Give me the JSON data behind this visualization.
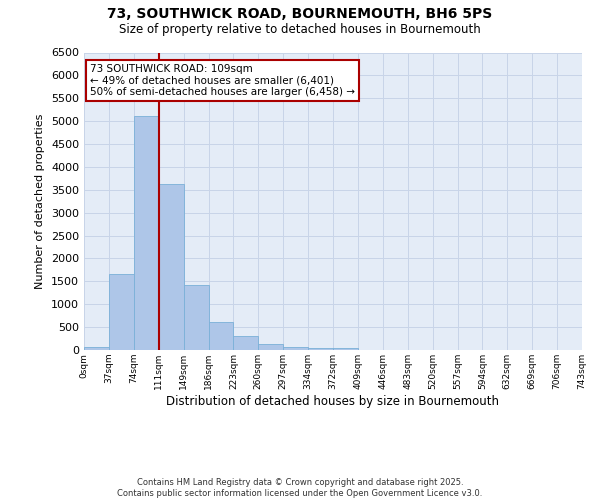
{
  "title_line1": "73, SOUTHWICK ROAD, BOURNEMOUTH, BH6 5PS",
  "title_line2": "Size of property relative to detached houses in Bournemouth",
  "xlabel": "Distribution of detached houses by size in Bournemouth",
  "ylabel": "Number of detached properties",
  "bar_values": [
    75,
    1650,
    5120,
    3620,
    1420,
    620,
    310,
    130,
    70,
    40,
    40,
    0,
    0,
    0,
    0,
    0,
    0,
    0,
    0,
    0
  ],
  "bar_labels": [
    "0sqm",
    "37sqm",
    "74sqm",
    "111sqm",
    "149sqm",
    "186sqm",
    "223sqm",
    "260sqm",
    "297sqm",
    "334sqm",
    "372sqm",
    "409sqm",
    "446sqm",
    "483sqm",
    "520sqm",
    "557sqm",
    "594sqm",
    "632sqm",
    "669sqm",
    "706sqm",
    "743sqm"
  ],
  "bar_color": "#aec6e8",
  "bar_edge_color": "#7ab0d8",
  "vline_x": 3.0,
  "vline_color": "#aa0000",
  "annotation_text": "73 SOUTHWICK ROAD: 109sqm\n← 49% of detached houses are smaller (6,401)\n50% of semi-detached houses are larger (6,458) →",
  "ylim": [
    0,
    6500
  ],
  "yticks": [
    0,
    500,
    1000,
    1500,
    2000,
    2500,
    3000,
    3500,
    4000,
    4500,
    5000,
    5500,
    6000,
    6500
  ],
  "grid_color": "#c8d4e8",
  "background_color": "#e4ecf7",
  "footer_text": "Contains HM Land Registry data © Crown copyright and database right 2025.\nContains public sector information licensed under the Open Government Licence v3.0.",
  "num_bars": 20
}
